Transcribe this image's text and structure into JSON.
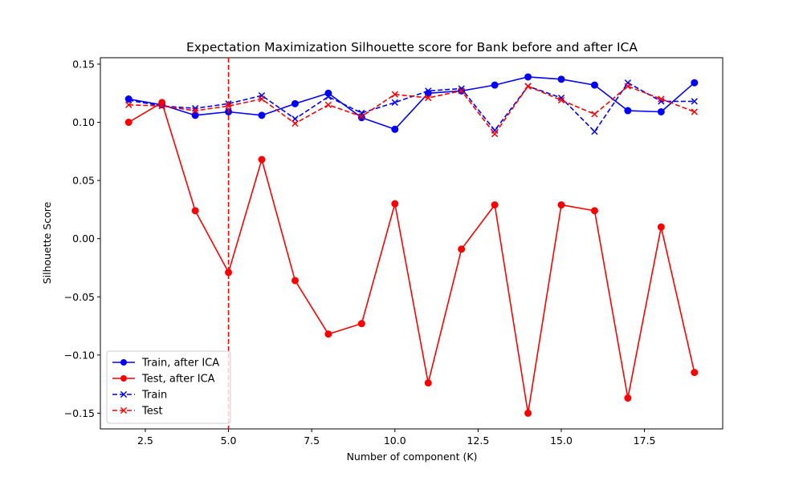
{
  "chart_data": {
    "type": "line",
    "title": "Expectation Maximization Silhouette score for Bank before and after ICA",
    "xlabel": "Number of component (K)",
    "ylabel": "Silhouette Score",
    "xlim": [
      1.15,
      19.85
    ],
    "ylim": [
      -0.1635,
      0.1555
    ],
    "x_ticks": [
      2.5,
      5.0,
      7.5,
      10.0,
      12.5,
      15.0,
      17.5
    ],
    "x_tick_labels": [
      "2.5",
      "5.0",
      "7.5",
      "10.0",
      "12.5",
      "15.0",
      "17.5"
    ],
    "y_ticks": [
      -0.15,
      -0.1,
      -0.05,
      0.0,
      0.05,
      0.1,
      0.15
    ],
    "y_tick_labels": [
      "−0.15",
      "−0.10",
      "−0.05",
      "0.00",
      "0.05",
      "0.10",
      "0.15"
    ],
    "grid": false,
    "legend_position": "lower-left",
    "vline": {
      "x": 5,
      "color": "#ff0000",
      "style": "dashed"
    },
    "x": [
      2,
      3,
      4,
      5,
      6,
      7,
      8,
      9,
      10,
      11,
      12,
      13,
      14,
      15,
      16,
      17,
      18,
      19
    ],
    "series": [
      {
        "name": "Train, after ICA",
        "color": "#0000ff",
        "linestyle": "solid",
        "marker": "circle",
        "values": [
          0.12,
          0.115,
          0.106,
          0.109,
          0.106,
          0.116,
          0.125,
          0.104,
          0.094,
          0.125,
          0.127,
          0.132,
          0.139,
          0.137,
          0.132,
          0.11,
          0.109,
          0.134
        ]
      },
      {
        "name": "Test, after ICA",
        "color": "#ff0000",
        "linestyle": "solid",
        "marker": "circle",
        "values": [
          0.1,
          0.117,
          0.024,
          -0.029,
          0.068,
          -0.036,
          -0.082,
          -0.073,
          0.03,
          -0.124,
          -0.009,
          0.029,
          -0.15,
          0.029,
          0.024,
          -0.137,
          0.01,
          -0.115
        ]
      },
      {
        "name": "Train",
        "color": "#0000ff",
        "linestyle": "dashed",
        "marker": "x",
        "values": [
          0.119,
          0.114,
          0.112,
          0.116,
          0.123,
          0.103,
          0.122,
          0.108,
          0.117,
          0.127,
          0.129,
          0.093,
          0.131,
          0.121,
          0.092,
          0.134,
          0.118,
          0.118
        ]
      },
      {
        "name": "Test",
        "color": "#ff0000",
        "linestyle": "dashed",
        "marker": "x",
        "values": [
          0.115,
          0.114,
          0.11,
          0.114,
          0.12,
          0.099,
          0.115,
          0.105,
          0.124,
          0.121,
          0.127,
          0.09,
          0.131,
          0.119,
          0.107,
          0.131,
          0.12,
          0.109
        ]
      }
    ]
  }
}
